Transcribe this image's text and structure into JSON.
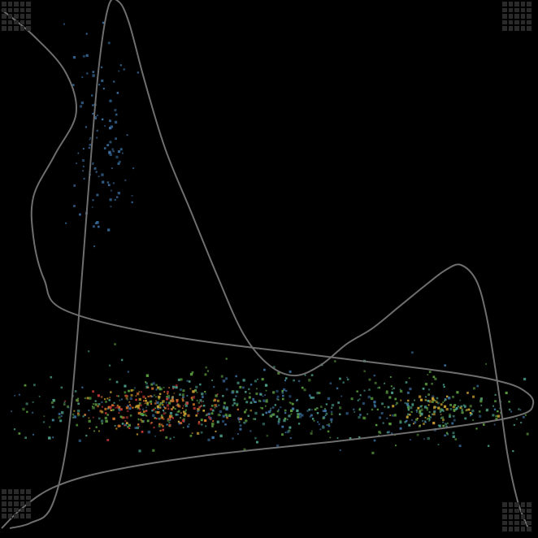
{
  "chart_data": {
    "type": "scatter",
    "title": "",
    "xlabel": "",
    "ylabel": "",
    "xlim": [
      0,
      100
    ],
    "ylim": [
      0,
      100
    ],
    "grid": false,
    "legend": "none",
    "point_colors": {
      "sparse": "#3b6fa0",
      "mid": "#4a9a88",
      "green": "#5a9a3e",
      "yellow": "#c8a030",
      "orange": "#d8782a",
      "red": "#c83838"
    },
    "curve_color": "#6e6e6e",
    "background": "#000000",
    "clusters": [
      {
        "name": "",
        "center": [
          18,
          73
        ],
        "spread": [
          3,
          12
        ],
        "count": 110,
        "palette": [
          "sparse"
        ]
      },
      {
        "name": "",
        "center": [
          50,
          23
        ],
        "spread": [
          32,
          3.5
        ],
        "count": 700,
        "palette": [
          "sparse",
          "mid",
          "green"
        ]
      },
      {
        "name": "",
        "center": [
          27,
          23
        ],
        "spread": [
          7,
          2.2
        ],
        "count": 260,
        "palette": [
          "yellow",
          "orange",
          "red",
          "green"
        ]
      },
      {
        "name": "",
        "center": [
          83,
          23
        ],
        "spread": [
          5,
          1.6
        ],
        "count": 120,
        "palette": [
          "green",
          "yellow",
          "mid"
        ]
      }
    ],
    "x_density": [
      [
        0,
        0.0
      ],
      [
        4,
        0.01
      ],
      [
        8,
        0.04
      ],
      [
        11,
        0.16
      ],
      [
        13,
        0.36
      ],
      [
        15,
        0.62
      ],
      [
        17,
        0.86
      ],
      [
        19,
        0.99
      ],
      [
        21,
        1.0
      ],
      [
        23,
        0.96
      ],
      [
        26,
        0.85
      ],
      [
        30,
        0.72
      ],
      [
        35,
        0.6
      ],
      [
        40,
        0.48
      ],
      [
        45,
        0.37
      ],
      [
        50,
        0.31
      ],
      [
        55,
        0.29
      ],
      [
        60,
        0.31
      ],
      [
        65,
        0.35
      ],
      [
        70,
        0.38
      ],
      [
        75,
        0.42
      ],
      [
        80,
        0.46
      ],
      [
        84,
        0.49
      ],
      [
        87,
        0.5
      ],
      [
        90,
        0.47
      ],
      [
        92,
        0.4
      ],
      [
        94,
        0.28
      ],
      [
        96,
        0.14
      ],
      [
        98,
        0.05
      ],
      [
        100,
        0.0
      ]
    ],
    "y_density": [
      [
        100,
        0.0
      ],
      [
        95,
        0.06
      ],
      [
        88,
        0.12
      ],
      [
        80,
        0.14
      ],
      [
        72,
        0.1
      ],
      [
        64,
        0.06
      ],
      [
        56,
        0.06
      ],
      [
        48,
        0.08
      ],
      [
        42,
        0.12
      ],
      [
        37,
        0.32
      ],
      [
        33,
        0.62
      ],
      [
        30,
        0.85
      ],
      [
        28,
        0.95
      ],
      [
        26,
        0.99
      ],
      [
        24,
        1.0
      ],
      [
        22,
        0.98
      ],
      [
        20,
        0.88
      ],
      [
        17,
        0.65
      ],
      [
        14,
        0.38
      ],
      [
        11,
        0.2
      ],
      [
        8,
        0.1
      ],
      [
        4,
        0.04
      ],
      [
        0,
        0.0
      ]
    ]
  }
}
